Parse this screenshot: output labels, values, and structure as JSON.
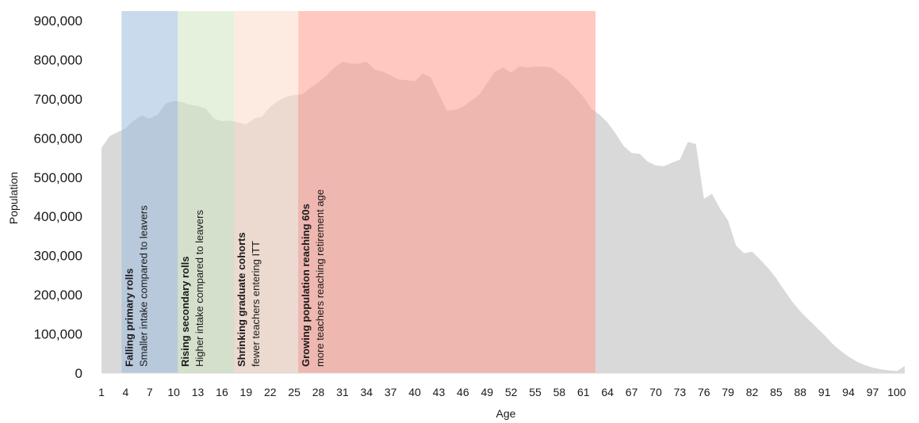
{
  "chart_data": {
    "type": "area",
    "xlabel": "Age",
    "ylabel": "Population",
    "xlim": [
      1,
      101
    ],
    "ylim": [
      0,
      900000
    ],
    "y_ticks": [
      "0",
      "100,000",
      "200,000",
      "300,000",
      "400,000",
      "500,000",
      "600,000",
      "700,000",
      "800,000",
      "900,000"
    ],
    "y_tick_values": [
      0,
      100000,
      200000,
      300000,
      400000,
      500000,
      600000,
      700000,
      800000,
      900000
    ],
    "x_ticks": [
      "1",
      "4",
      "7",
      "10",
      "13",
      "16",
      "19",
      "22",
      "25",
      "28",
      "31",
      "34",
      "37",
      "40",
      "43",
      "46",
      "49",
      "52",
      "55",
      "58",
      "61",
      "64",
      "67",
      "70",
      "73",
      "76",
      "79",
      "82",
      "85",
      "88",
      "91",
      "94",
      "97",
      "100"
    ],
    "x_tick_values": [
      1,
      4,
      7,
      10,
      13,
      16,
      19,
      22,
      25,
      28,
      31,
      34,
      37,
      40,
      43,
      46,
      49,
      52,
      55,
      58,
      61,
      64,
      67,
      70,
      73,
      76,
      79,
      82,
      85,
      88,
      91,
      94,
      97,
      100
    ],
    "area_color": "#d9d9d9",
    "x": [
      1,
      2,
      3,
      4,
      5,
      6,
      7,
      8,
      9,
      10,
      11,
      12,
      13,
      14,
      15,
      16,
      17,
      18,
      19,
      20,
      21,
      22,
      23,
      24,
      25,
      26,
      27,
      28,
      29,
      30,
      31,
      32,
      33,
      34,
      35,
      36,
      37,
      38,
      39,
      40,
      41,
      42,
      43,
      44,
      45,
      46,
      47,
      48,
      49,
      50,
      51,
      52,
      53,
      54,
      55,
      56,
      57,
      58,
      59,
      60,
      61,
      62,
      63,
      64,
      65,
      66,
      67,
      68,
      69,
      70,
      71,
      72,
      73,
      74,
      75,
      76,
      77,
      78,
      79,
      80,
      81,
      82,
      83,
      84,
      85,
      86,
      87,
      88,
      89,
      90,
      91,
      92,
      93,
      94,
      95,
      96,
      97,
      98,
      99,
      100,
      101
    ],
    "values": [
      575000,
      605000,
      615000,
      625000,
      645000,
      658000,
      650000,
      660000,
      688000,
      695000,
      692000,
      685000,
      682000,
      675000,
      650000,
      643000,
      645000,
      640000,
      635000,
      650000,
      655000,
      680000,
      695000,
      705000,
      710000,
      712000,
      728000,
      742000,
      760000,
      780000,
      795000,
      790000,
      790000,
      795000,
      775000,
      770000,
      760000,
      750000,
      748000,
      745000,
      765000,
      755000,
      712000,
      670000,
      672000,
      680000,
      695000,
      710000,
      740000,
      770000,
      780000,
      767000,
      783000,
      780000,
      782000,
      782000,
      780000,
      765000,
      750000,
      728000,
      705000,
      675000,
      660000,
      640000,
      612000,
      580000,
      562000,
      560000,
      540000,
      530000,
      528000,
      537000,
      545000,
      590000,
      585000,
      445000,
      458000,
      420000,
      390000,
      325000,
      306000,
      310000,
      290000,
      268000,
      242000,
      212000,
      182000,
      158000,
      137000,
      117000,
      97000,
      75000,
      57000,
      42000,
      30000,
      21000,
      14000,
      10000,
      7000,
      5000,
      18000
    ],
    "bands": [
      {
        "x_start": 3.5,
        "x_end": 10.5,
        "color": "#9bbcdc",
        "opacity": 0.55,
        "title": "Falling primary rolls",
        "subtitle": "Smaller intake compared to leavers"
      },
      {
        "x_start": 10.5,
        "x_end": 17.5,
        "color": "#cfe6c0",
        "opacity": 0.55,
        "title": "Rising secondary rolls",
        "subtitle": "Higher intake compared to leavers"
      },
      {
        "x_start": 17.5,
        "x_end": 25.5,
        "color": "#fbd8c8",
        "opacity": 0.55,
        "title": "Shrinking graduate cohorts",
        "subtitle": "fewer teachers entering ITT"
      },
      {
        "x_start": 25.5,
        "x_end": 62.5,
        "color": "#ff9a8e",
        "opacity": 0.55,
        "title": "Growing population reaching 60s",
        "subtitle": "more teachers reaching retirement age"
      }
    ]
  }
}
